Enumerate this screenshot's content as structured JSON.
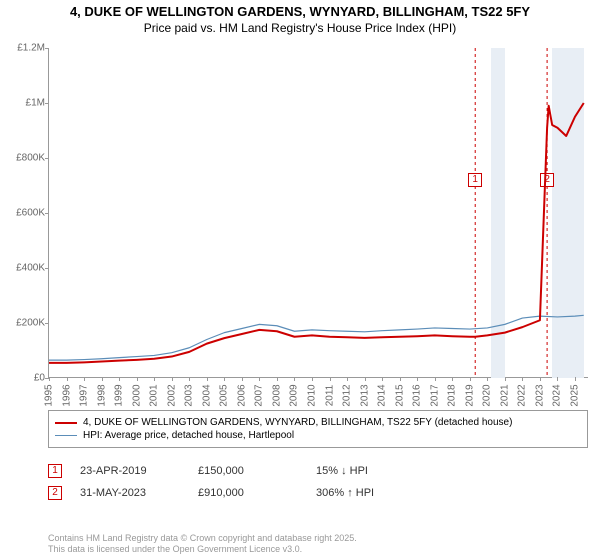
{
  "title": "4, DUKE OF WELLINGTON GARDENS, WYNYARD, BILLINGHAM, TS22 5FY",
  "subtitle": "Price paid vs. HM Land Registry's House Price Index (HPI)",
  "chart": {
    "type": "line",
    "background_color": "#ffffff",
    "grid_color": "#e0e0e0",
    "axis_color": "#999999",
    "tick_font_size": 10,
    "tick_color": "#666666",
    "xlim": [
      1995,
      2025.8
    ],
    "ylim": [
      0,
      1200000
    ],
    "yticks": [
      {
        "v": 0,
        "label": "£0"
      },
      {
        "v": 200000,
        "label": "£200K"
      },
      {
        "v": 400000,
        "label": "£400K"
      },
      {
        "v": 600000,
        "label": "£600K"
      },
      {
        "v": 800000,
        "label": "£800K"
      },
      {
        "v": 1000000,
        "label": "£1M"
      },
      {
        "v": 1200000,
        "label": "£1.2M"
      }
    ],
    "xticks": [
      1995,
      1996,
      1997,
      1998,
      1999,
      2000,
      2001,
      2002,
      2003,
      2004,
      2005,
      2006,
      2007,
      2008,
      2009,
      2010,
      2011,
      2012,
      2013,
      2014,
      2015,
      2016,
      2017,
      2018,
      2019,
      2020,
      2021,
      2022,
      2023,
      2024,
      2025
    ],
    "series": [
      {
        "name": "property",
        "label": "4, DUKE OF WELLINGTON GARDENS, WYNYARD, BILLINGHAM, TS22 5FY (detached house)",
        "color": "#cc0000",
        "line_width": 2,
        "points": [
          [
            1995,
            55000
          ],
          [
            1996,
            55000
          ],
          [
            1997,
            57000
          ],
          [
            1998,
            60000
          ],
          [
            1999,
            63000
          ],
          [
            2000,
            66000
          ],
          [
            2001,
            70000
          ],
          [
            2002,
            78000
          ],
          [
            2003,
            95000
          ],
          [
            2004,
            125000
          ],
          [
            2005,
            145000
          ],
          [
            2006,
            160000
          ],
          [
            2007,
            175000
          ],
          [
            2008,
            170000
          ],
          [
            2009,
            150000
          ],
          [
            2010,
            155000
          ],
          [
            2011,
            150000
          ],
          [
            2012,
            148000
          ],
          [
            2013,
            146000
          ],
          [
            2014,
            148000
          ],
          [
            2015,
            150000
          ],
          [
            2016,
            152000
          ],
          [
            2017,
            155000
          ],
          [
            2018,
            152000
          ],
          [
            2019,
            150000
          ],
          [
            2019.31,
            150000
          ],
          [
            2020,
            155000
          ],
          [
            2021,
            165000
          ],
          [
            2022,
            185000
          ],
          [
            2023,
            210000
          ],
          [
            2023.41,
            910000
          ],
          [
            2023.5,
            990000
          ],
          [
            2023.7,
            920000
          ],
          [
            2024,
            910000
          ],
          [
            2024.5,
            880000
          ],
          [
            2025,
            950000
          ],
          [
            2025.5,
            1000000
          ]
        ]
      },
      {
        "name": "hpi",
        "label": "HPI: Average price, detached house, Hartlepool",
        "color": "#5b8db8",
        "line_width": 1.2,
        "points": [
          [
            1995,
            65000
          ],
          [
            1996,
            65000
          ],
          [
            1997,
            67000
          ],
          [
            1998,
            70000
          ],
          [
            1999,
            74000
          ],
          [
            2000,
            78000
          ],
          [
            2001,
            82000
          ],
          [
            2002,
            92000
          ],
          [
            2003,
            110000
          ],
          [
            2004,
            140000
          ],
          [
            2005,
            165000
          ],
          [
            2006,
            180000
          ],
          [
            2007,
            195000
          ],
          [
            2008,
            190000
          ],
          [
            2009,
            170000
          ],
          [
            2010,
            175000
          ],
          [
            2011,
            172000
          ],
          [
            2012,
            170000
          ],
          [
            2013,
            168000
          ],
          [
            2014,
            172000
          ],
          [
            2015,
            175000
          ],
          [
            2016,
            178000
          ],
          [
            2017,
            182000
          ],
          [
            2018,
            180000
          ],
          [
            2019,
            178000
          ],
          [
            2020,
            182000
          ],
          [
            2021,
            195000
          ],
          [
            2022,
            218000
          ],
          [
            2023,
            225000
          ],
          [
            2024,
            222000
          ],
          [
            2025,
            225000
          ],
          [
            2025.5,
            228000
          ]
        ]
      }
    ],
    "highlights": [
      {
        "x": 2019.31,
        "color": "#cc0000",
        "dash": true,
        "marker": "1"
      },
      {
        "x_from": 2020.2,
        "x_to": 2021.0,
        "fill": "#e8eef5"
      },
      {
        "x": 2023.41,
        "color": "#cc0000",
        "dash": true,
        "marker": "2"
      },
      {
        "x_from": 2023.7,
        "x_to": 2025.5,
        "fill": "#e8eef5"
      }
    ]
  },
  "legend": {
    "border_color": "#999999",
    "font_size": 10,
    "items": [
      {
        "color": "#cc0000",
        "width": 2,
        "label": "4, DUKE OF WELLINGTON GARDENS, WYNYARD, BILLINGHAM, TS22 5FY (detached house)"
      },
      {
        "color": "#5b8db8",
        "width": 1.2,
        "label": "HPI: Average price, detached house, Hartlepool"
      }
    ]
  },
  "transactions": [
    {
      "marker": "1",
      "date": "23-APR-2019",
      "price": "£150,000",
      "pct": "15% ↓ HPI"
    },
    {
      "marker": "2",
      "date": "31-MAY-2023",
      "price": "£910,000",
      "pct": "306% ↑ HPI"
    }
  ],
  "copyright": {
    "line1": "Contains HM Land Registry data © Crown copyright and database right 2025.",
    "line2": "This data is licensed under the Open Government Licence v3.0."
  }
}
